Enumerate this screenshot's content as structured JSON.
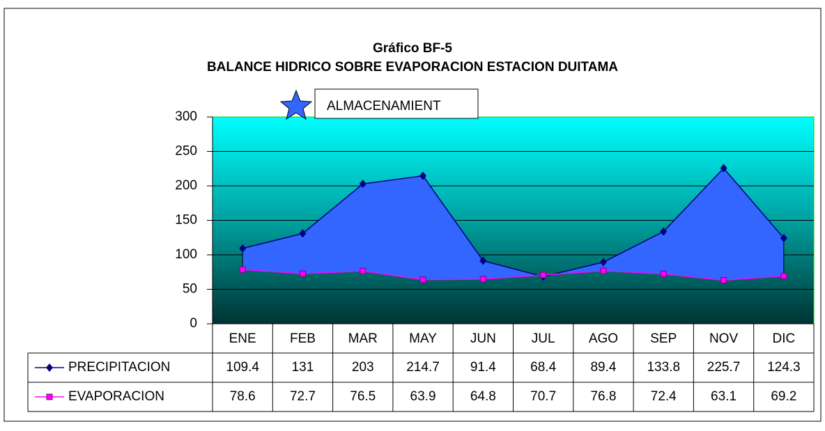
{
  "chart_data": {
    "type": "line",
    "title": "Gráfico BF-5",
    "subtitle": "BALANCE HIDRICO SOBRE EVAPORACION ESTACION DUITAMA",
    "area_label": "ALMACENAMIENT",
    "area_color": "#3366ff",
    "categories": [
      "ENE",
      "FEB",
      "MAR",
      "MAY",
      "JUN",
      "JUL",
      "AGO",
      "SEP",
      "NOV",
      "DIC"
    ],
    "series": [
      {
        "name": "PRECIPITACION",
        "color": "#000080",
        "marker": "diamond",
        "values": [
          109.4,
          131,
          203,
          214.7,
          91.4,
          68.4,
          89.4,
          133.8,
          225.7,
          124.3
        ]
      },
      {
        "name": "EVAPORACION",
        "color": "#ff00ff",
        "marker": "square",
        "values": [
          78.6,
          72.7,
          76.5,
          63.9,
          64.8,
          70.7,
          76.8,
          72.4,
          63.1,
          69.2
        ]
      }
    ],
    "ylim": [
      0,
      300
    ],
    "yticks": [
      0,
      50,
      100,
      150,
      200,
      250,
      300
    ],
    "grid": true
  }
}
